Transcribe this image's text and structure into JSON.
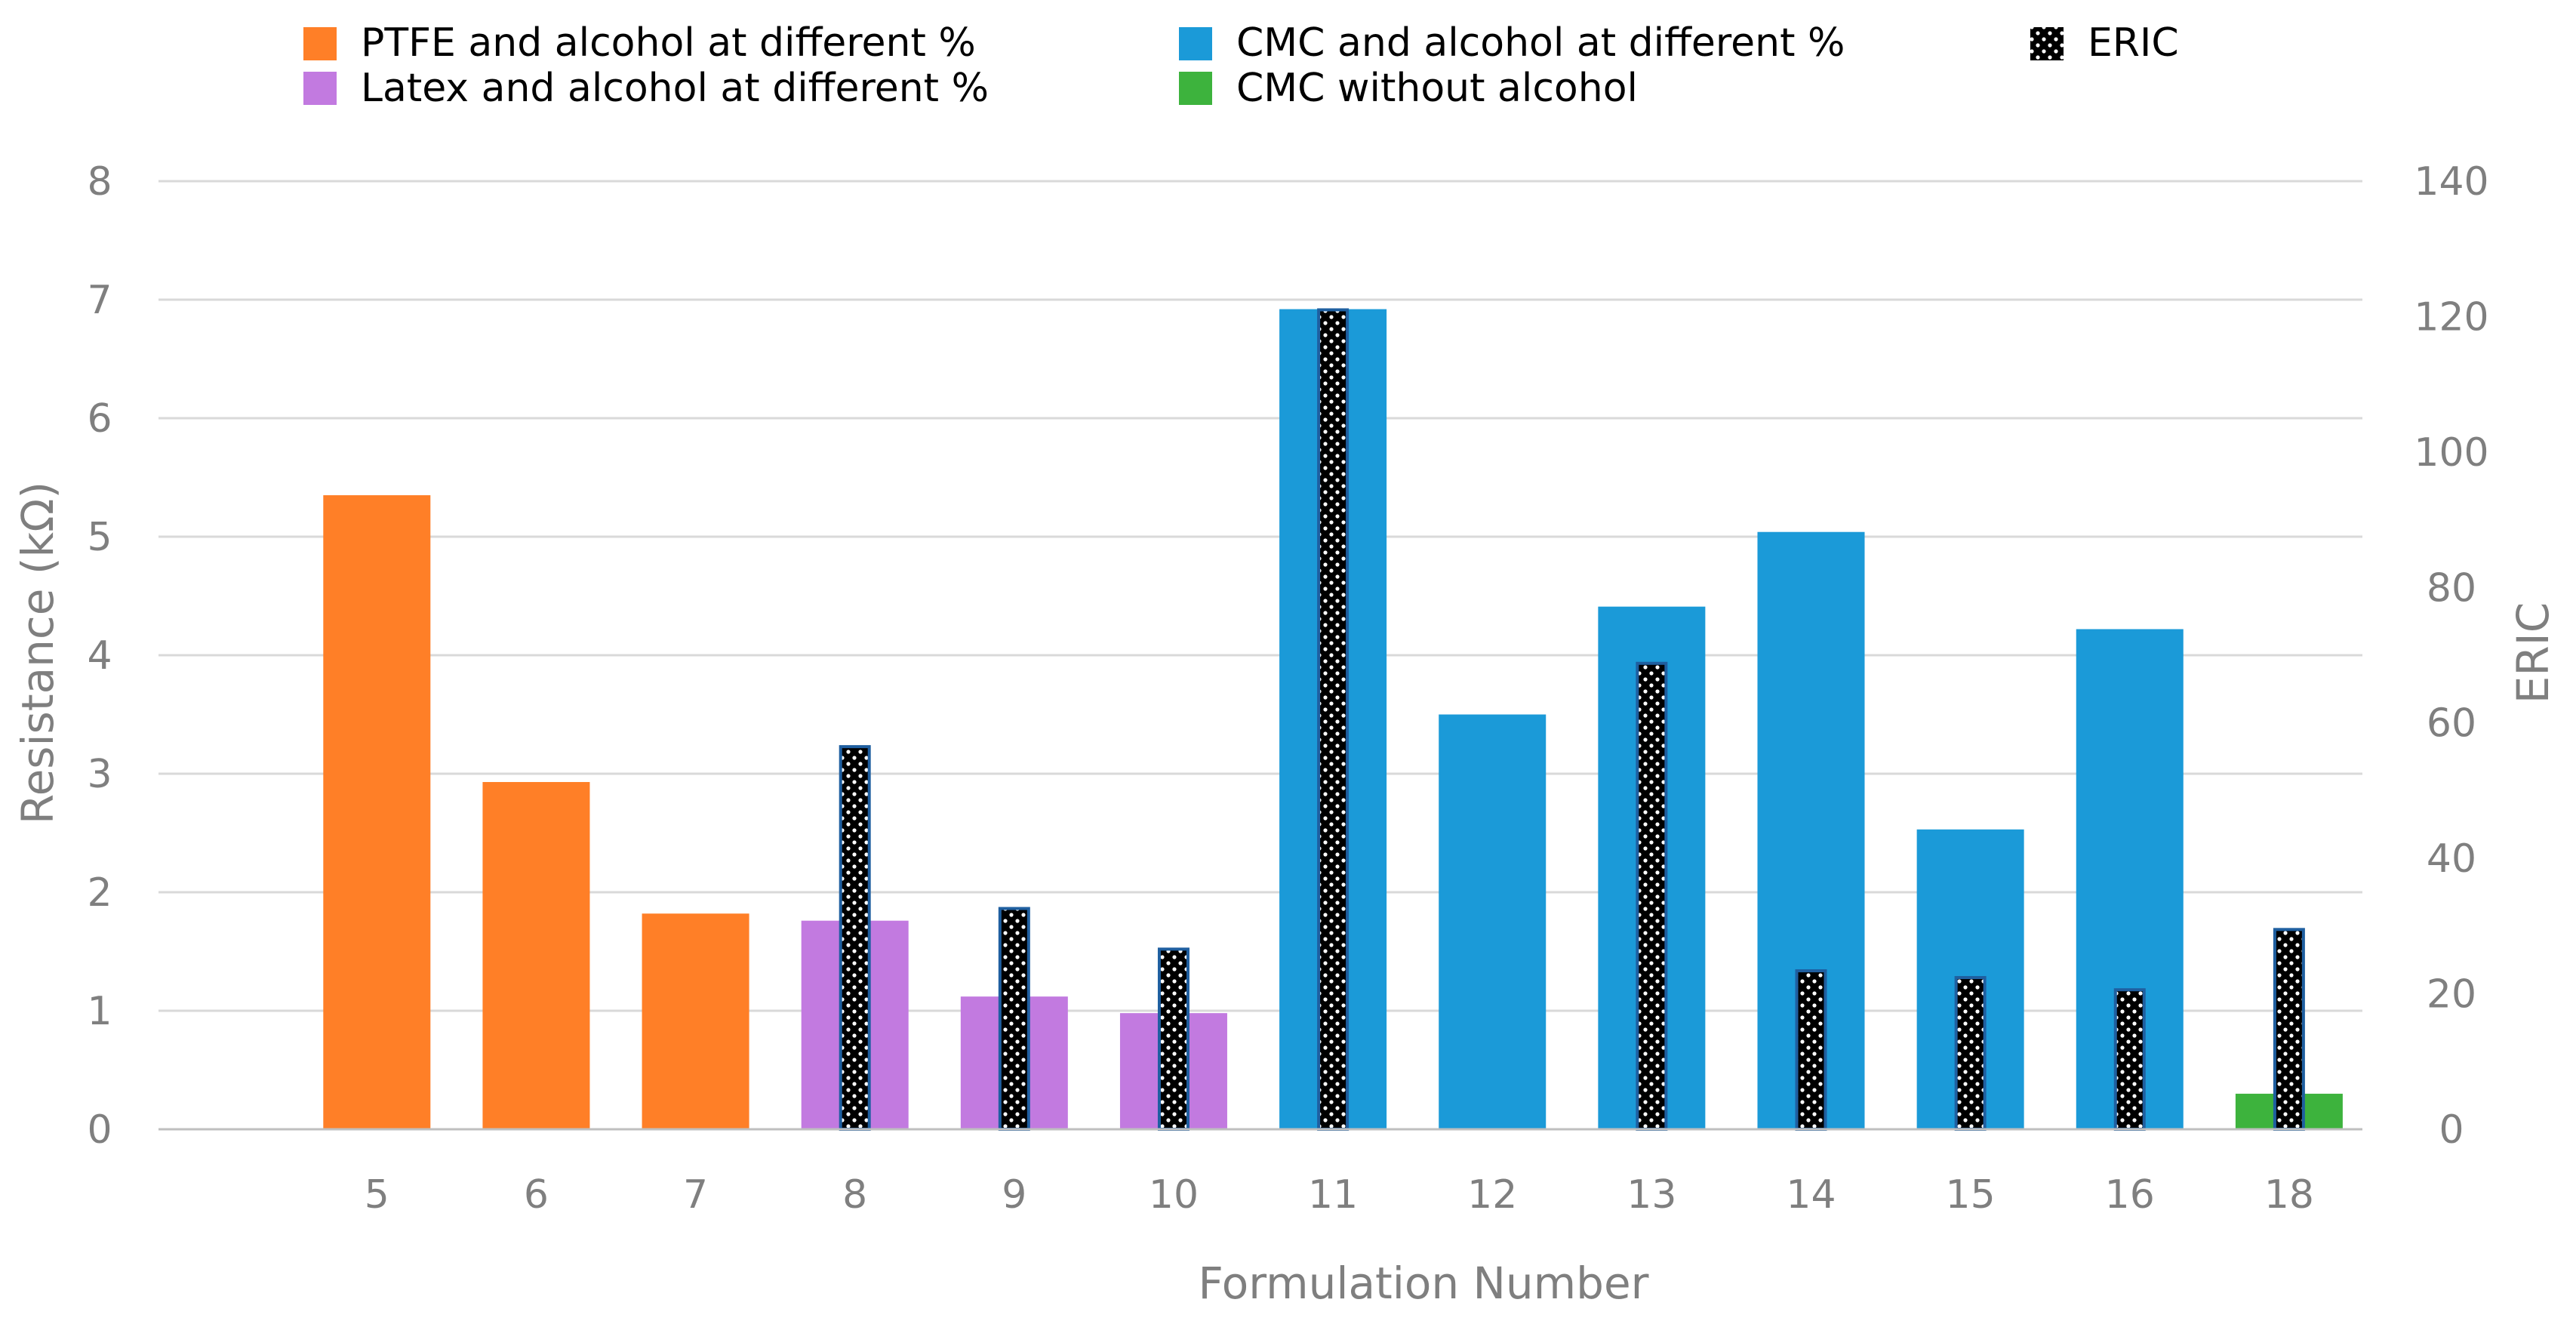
{
  "chart_data": {
    "type": "bar",
    "title": "",
    "xlabel": "Formulation Number",
    "ylabel": "Resistance (kΩ)",
    "y2label": "ERIC",
    "ylim": [
      0,
      8
    ],
    "y2lim": [
      0,
      140
    ],
    "yticks": [
      "0",
      "1",
      "2",
      "3",
      "4",
      "5",
      "6",
      "7",
      "8"
    ],
    "y2ticks": [
      "0",
      "20",
      "40",
      "60",
      "80",
      "100",
      "120",
      "140"
    ],
    "grid": true,
    "legend_position": "top",
    "categories": [
      "5",
      "6",
      "7",
      "8",
      "9",
      "10",
      "11",
      "12",
      "13",
      "14",
      "15",
      "16",
      "18"
    ],
    "colors": {
      "ptfe": "#ff7f27",
      "latex": "#c27ae0",
      "cmc": "#1b9ad8",
      "cmc_no_alcohol": "#3db33d",
      "eric_fill": "#000000",
      "eric_edge": "#1f5fa0",
      "grid": "#d9d9d9",
      "axis": "#bfbfbf"
    },
    "legend": [
      {
        "key": "ptfe",
        "label": "PTFE and alcohol at different %",
        "color": "#ff7f27",
        "pattern": false
      },
      {
        "key": "latex",
        "label": "Latex and alcohol at different %",
        "color": "#c27ae0",
        "pattern": false
      },
      {
        "key": "cmc",
        "label": "CMC and alcohol at different %",
        "color": "#1b9ad8",
        "pattern": false
      },
      {
        "key": "cmc_no_alcohol",
        "label": "CMC without alcohol",
        "color": "#3db33d",
        "pattern": false
      },
      {
        "key": "eric",
        "label": "ERIC",
        "color": "#000000",
        "pattern": true
      }
    ],
    "resistance": [
      {
        "category": "5",
        "group": "ptfe",
        "value": 5.35
      },
      {
        "category": "6",
        "group": "ptfe",
        "value": 2.93
      },
      {
        "category": "7",
        "group": "ptfe",
        "value": 1.82
      },
      {
        "category": "8",
        "group": "latex",
        "value": 1.76
      },
      {
        "category": "9",
        "group": "latex",
        "value": 1.12
      },
      {
        "category": "10",
        "group": "latex",
        "value": 0.98
      },
      {
        "category": "11",
        "group": "cmc",
        "value": 6.92
      },
      {
        "category": "12",
        "group": "cmc",
        "value": 3.5
      },
      {
        "category": "13",
        "group": "cmc",
        "value": 4.41
      },
      {
        "category": "14",
        "group": "cmc",
        "value": 5.04
      },
      {
        "category": "15",
        "group": "cmc",
        "value": 2.53
      },
      {
        "category": "16",
        "group": "cmc",
        "value": 4.22
      },
      {
        "category": "18",
        "group": "cmc_no_alcohol",
        "value": 0.3
      }
    ],
    "eric": [
      {
        "category": "5",
        "value": null
      },
      {
        "category": "6",
        "value": null
      },
      {
        "category": "7",
        "value": null
      },
      {
        "category": "8",
        "value": 56.5
      },
      {
        "category": "9",
        "value": 32.6
      },
      {
        "category": "10",
        "value": 26.6
      },
      {
        "category": "11",
        "value": 121
      },
      {
        "category": "12",
        "value": null
      },
      {
        "category": "13",
        "value": 68.8
      },
      {
        "category": "14",
        "value": 23.4
      },
      {
        "category": "15",
        "value": 22.4
      },
      {
        "category": "16",
        "value": 20.6
      },
      {
        "category": "18",
        "value": 29.5
      }
    ]
  }
}
